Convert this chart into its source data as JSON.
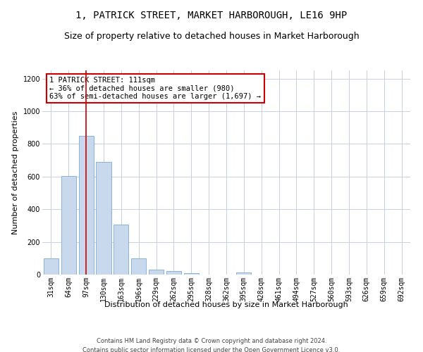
{
  "title": "1, PATRICK STREET, MARKET HARBOROUGH, LE16 9HP",
  "subtitle": "Size of property relative to detached houses in Market Harborough",
  "xlabel": "Distribution of detached houses by size in Market Harborough",
  "ylabel": "Number of detached properties",
  "footer_line1": "Contains HM Land Registry data © Crown copyright and database right 2024.",
  "footer_line2": "Contains public sector information licensed under the Open Government Licence v3.0.",
  "bar_color": "#c9d9ed",
  "bar_edgecolor": "#7aacd4",
  "grid_color": "#c8d0e0",
  "annotation_box_color": "#cc0000",
  "vline_color": "#cc0000",
  "categories": [
    "31sqm",
    "64sqm",
    "97sqm",
    "130sqm",
    "163sqm",
    "196sqm",
    "229sqm",
    "262sqm",
    "295sqm",
    "328sqm",
    "362sqm",
    "395sqm",
    "428sqm",
    "461sqm",
    "494sqm",
    "527sqm",
    "560sqm",
    "593sqm",
    "626sqm",
    "659sqm",
    "692sqm"
  ],
  "values": [
    100,
    605,
    850,
    690,
    305,
    100,
    30,
    22,
    10,
    0,
    0,
    14,
    0,
    0,
    0,
    0,
    0,
    0,
    0,
    0,
    0
  ],
  "ylim": [
    0,
    1250
  ],
  "yticks": [
    0,
    200,
    400,
    600,
    800,
    1000,
    1200
  ],
  "vline_x": 2,
  "annotation_text": "1 PATRICK STREET: 111sqm\n← 36% of detached houses are smaller (980)\n63% of semi-detached houses are larger (1,697) →",
  "bar_width": 0.85,
  "title_fontsize": 10,
  "subtitle_fontsize": 9,
  "ylabel_fontsize": 8,
  "xlabel_fontsize": 8,
  "tick_fontsize": 7,
  "annotation_fontsize": 7.5,
  "footer_fontsize": 6
}
